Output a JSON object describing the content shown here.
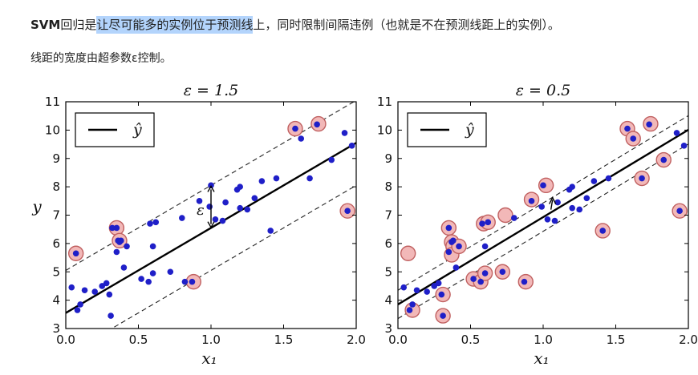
{
  "text": {
    "p1_bold": "SVM",
    "p1_plain_a": "回归是",
    "p1_highlight": "让尽可能多的实例位于预测线",
    "p1_rest": "上，同时限制间隔违例（也就是不在预测线距上的实例）。",
    "p2": "线距的宽度由超参数ε控制。"
  },
  "colors": {
    "point": "#1f1fc8",
    "support_ring": "#c06060",
    "support_fill": "#f2b8b8",
    "line": "#000000",
    "highlight": "#b3d4fc"
  },
  "chart_data": [
    {
      "type": "scatter",
      "title": "ε = 1.5",
      "xlabel": "x₁",
      "ylabel": "y",
      "xlim": [
        0.0,
        2.0
      ],
      "ylim": [
        3,
        11
      ],
      "xticks": [
        "0.0",
        "0.5",
        "1.0",
        "1.5",
        "2.0"
      ],
      "yticks": [
        "3",
        "4",
        "5",
        "6",
        "7",
        "8",
        "9",
        "10",
        "11"
      ],
      "legend": {
        "label": "ŷ",
        "placement": "top-left"
      },
      "regression": {
        "intercept": 3.55,
        "slope": 3.0,
        "epsilon": 1.5
      },
      "annotation": "ε",
      "annotation_x": 1.0,
      "points": [
        [
          0.04,
          4.45
        ],
        [
          0.1,
          3.85
        ],
        [
          0.08,
          3.65
        ],
        [
          0.13,
          4.35
        ],
        [
          0.2,
          4.3
        ],
        [
          0.25,
          4.5
        ],
        [
          0.28,
          4.6
        ],
        [
          0.3,
          4.2
        ],
        [
          0.31,
          3.45
        ],
        [
          0.35,
          5.7
        ],
        [
          0.35,
          6.55
        ],
        [
          0.37,
          6.05
        ],
        [
          0.38,
          6.1
        ],
        [
          0.4,
          5.15
        ],
        [
          0.42,
          5.9
        ],
        [
          0.52,
          4.75
        ],
        [
          0.57,
          4.65
        ],
        [
          0.6,
          4.95
        ],
        [
          0.6,
          5.9
        ],
        [
          0.58,
          6.7
        ],
        [
          0.62,
          6.75
        ],
        [
          0.72,
          5.0
        ],
        [
          0.8,
          6.9
        ],
        [
          0.87,
          4.65
        ],
        [
          0.92,
          7.5
        ],
        [
          0.99,
          7.3
        ],
        [
          1.0,
          8.05
        ],
        [
          1.03,
          6.85
        ],
        [
          1.08,
          6.8
        ],
        [
          1.1,
          7.45
        ],
        [
          1.18,
          7.9
        ],
        [
          1.2,
          8.0
        ],
        [
          1.2,
          7.25
        ],
        [
          1.25,
          7.2
        ],
        [
          1.3,
          7.6
        ],
        [
          1.35,
          8.2
        ],
        [
          1.41,
          6.45
        ],
        [
          1.45,
          8.3
        ],
        [
          1.58,
          10.05
        ],
        [
          1.62,
          9.7
        ],
        [
          1.68,
          8.3
        ],
        [
          1.73,
          10.2
        ],
        [
          1.83,
          8.95
        ],
        [
          1.92,
          9.9
        ],
        [
          1.94,
          7.15
        ],
        [
          1.97,
          9.45
        ],
        [
          0.07,
          5.65
        ],
        [
          0.36,
          6.1
        ],
        [
          0.32,
          6.55
        ],
        [
          0.82,
          4.65
        ]
      ],
      "support_vectors": [
        [
          0.07,
          5.65
        ],
        [
          0.35,
          6.55
        ],
        [
          0.37,
          6.1
        ],
        [
          0.88,
          4.65
        ],
        [
          1.58,
          10.05
        ],
        [
          1.74,
          10.22
        ],
        [
          1.94,
          7.15
        ]
      ]
    },
    {
      "type": "scatter",
      "title": "ε = 0.5",
      "xlabel": "x₁",
      "ylabel": "",
      "xlim": [
        0.0,
        2.0
      ],
      "ylim": [
        3,
        11
      ],
      "xticks": [
        "0.0",
        "0.5",
        "1.0",
        "1.5",
        "2.0"
      ],
      "yticks": [
        "3",
        "4",
        "5",
        "6",
        "7",
        "8",
        "9",
        "10",
        "11"
      ],
      "legend": {
        "label": "ŷ",
        "placement": "top-left"
      },
      "regression": {
        "intercept": 3.85,
        "slope": 3.08,
        "epsilon": 0.5
      },
      "annotation": "",
      "annotation_x": 1.07,
      "points": [
        [
          0.04,
          4.45
        ],
        [
          0.1,
          3.85
        ],
        [
          0.08,
          3.65
        ],
        [
          0.13,
          4.35
        ],
        [
          0.2,
          4.3
        ],
        [
          0.25,
          4.5
        ],
        [
          0.28,
          4.6
        ],
        [
          0.3,
          4.2
        ],
        [
          0.31,
          3.45
        ],
        [
          0.35,
          5.7
        ],
        [
          0.35,
          6.55
        ],
        [
          0.37,
          6.05
        ],
        [
          0.38,
          6.1
        ],
        [
          0.4,
          5.15
        ],
        [
          0.42,
          5.9
        ],
        [
          0.52,
          4.75
        ],
        [
          0.57,
          4.65
        ],
        [
          0.6,
          4.95
        ],
        [
          0.6,
          5.9
        ],
        [
          0.58,
          6.7
        ],
        [
          0.62,
          6.75
        ],
        [
          0.72,
          5.0
        ],
        [
          0.8,
          6.9
        ],
        [
          0.87,
          4.65
        ],
        [
          0.92,
          7.5
        ],
        [
          0.99,
          7.3
        ],
        [
          1.0,
          8.05
        ],
        [
          1.03,
          6.85
        ],
        [
          1.08,
          6.8
        ],
        [
          1.1,
          7.45
        ],
        [
          1.18,
          7.9
        ],
        [
          1.2,
          8.0
        ],
        [
          1.2,
          7.25
        ],
        [
          1.25,
          7.2
        ],
        [
          1.3,
          7.6
        ],
        [
          1.35,
          8.2
        ],
        [
          1.41,
          6.45
        ],
        [
          1.45,
          8.3
        ],
        [
          1.58,
          10.05
        ],
        [
          1.62,
          9.7
        ],
        [
          1.68,
          8.3
        ],
        [
          1.73,
          10.2
        ],
        [
          1.83,
          8.95
        ],
        [
          1.92,
          9.9
        ],
        [
          1.94,
          7.15
        ],
        [
          1.97,
          9.45
        ]
      ],
      "support_vectors": [
        [
          0.07,
          5.65
        ],
        [
          0.1,
          3.65
        ],
        [
          0.31,
          3.45
        ],
        [
          0.31,
          4.2
        ],
        [
          0.35,
          6.55
        ],
        [
          0.37,
          6.05
        ],
        [
          0.38,
          5.9
        ],
        [
          0.37,
          5.6
        ],
        [
          0.42,
          5.9
        ],
        [
          0.52,
          4.75
        ],
        [
          0.57,
          4.65
        ],
        [
          0.6,
          4.95
        ],
        [
          0.59,
          6.7
        ],
        [
          0.62,
          6.75
        ],
        [
          0.74,
          7.0
        ],
        [
          0.72,
          5.0
        ],
        [
          0.88,
          4.65
        ],
        [
          0.92,
          7.55
        ],
        [
          1.02,
          8.05
        ],
        [
          1.41,
          6.45
        ],
        [
          1.58,
          10.05
        ],
        [
          1.62,
          9.7
        ],
        [
          1.74,
          10.22
        ],
        [
          1.68,
          8.3
        ],
        [
          1.83,
          8.95
        ],
        [
          1.94,
          7.15
        ]
      ]
    }
  ]
}
